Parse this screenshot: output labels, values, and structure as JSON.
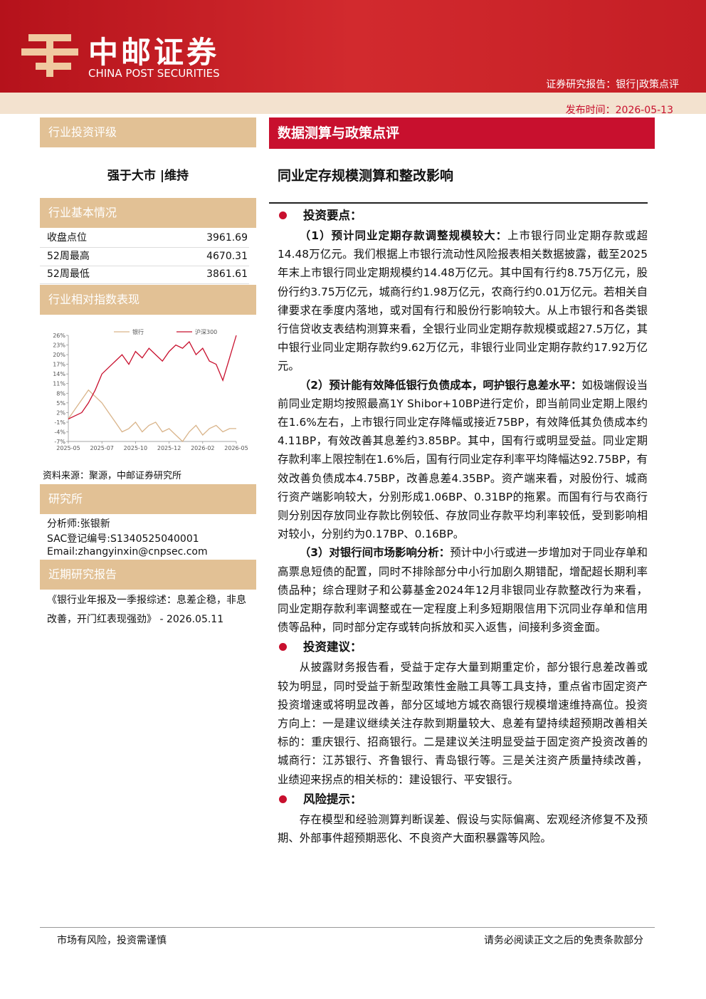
{
  "header": {
    "brand_cn": "中邮证券",
    "brand_en": "CHINA POST SECURITIES",
    "report_type": "证券研究报告：银行|政策点评",
    "publish_date": "发布时间：2026-05-13"
  },
  "sidebar": {
    "rating_title": "行业投资评级",
    "rating": "强于大市 |维持",
    "basics_title": "行业基本情况",
    "basics": [
      [
        "收盘点位",
        "3961.69"
      ],
      [
        "52周最高",
        "4670.31"
      ],
      [
        "52周最低",
        "3861.61"
      ]
    ],
    "performance_title": "行业相对指数表现",
    "source": "资料来源：聚源，中邮证券研究所",
    "institute_title": "研究所",
    "analyst": [
      "分析师:张银新",
      "SAC登记编号:S1340525040001",
      "Email:zhangyinxin@cnpsec.com"
    ],
    "recent_title": "近期研究报告",
    "recent": "《银行业年报及一季报综述：息差企稳，非息改善，开门红表现强劲》 - 2026.05.11"
  },
  "chart_data": {
    "type": "line",
    "x": [
      0,
      1,
      2,
      3,
      4,
      5,
      6,
      7,
      8,
      9,
      10,
      11,
      12,
      13,
      14,
      15,
      16,
      17,
      18,
      19,
      20,
      21,
      22,
      23,
      24,
      25
    ],
    "xlim": [
      0,
      25
    ],
    "xticks": [
      {
        "value": 0,
        "label": "2025-05"
      },
      {
        "value": 5,
        "label": "2025-07"
      },
      {
        "value": 10,
        "label": "2025-10"
      },
      {
        "value": 15,
        "label": "2025-12"
      },
      {
        "value": 20,
        "label": "2026-02"
      },
      {
        "value": 25,
        "label": "2026-05"
      }
    ],
    "ylim": [
      -7,
      26
    ],
    "yticks": [
      {
        "value": 26,
        "label": "26%"
      },
      {
        "value": 23,
        "label": "23%"
      },
      {
        "value": 20,
        "label": "20%"
      },
      {
        "value": 17,
        "label": "17%"
      },
      {
        "value": 14,
        "label": "14%"
      },
      {
        "value": 11,
        "label": "11%"
      },
      {
        "value": 8,
        "label": "8%"
      },
      {
        "value": 5,
        "label": "5%"
      },
      {
        "value": 2,
        "label": "2%"
      },
      {
        "value": -1,
        "label": "-1%"
      },
      {
        "value": -4,
        "label": "-4%"
      },
      {
        "value": -7,
        "label": "-7%"
      }
    ],
    "series": [
      {
        "name": "银行",
        "color": "#d9b48a",
        "values": [
          0,
          3,
          6,
          9,
          7,
          5,
          2,
          -1,
          -4,
          -3,
          -1,
          -4,
          -2,
          -1,
          -4,
          -3,
          -5,
          -7,
          -4,
          -2,
          -5,
          -3,
          -2,
          -4,
          -3,
          -3
        ]
      },
      {
        "name": "沪深300",
        "color": "#c8102e",
        "values": [
          0,
          1,
          2,
          5,
          9,
          14,
          16,
          18,
          20,
          17,
          21,
          19,
          22,
          20,
          18,
          21,
          23,
          22,
          24,
          20,
          22,
          18,
          17,
          12,
          19,
          26
        ]
      }
    ]
  },
  "main": {
    "banner": "数据测算与政策点评",
    "title": "同业定存规模测算和整改影响",
    "sections": [
      {
        "heading": "投资要点：",
        "paragraphs": [
          {
            "lead": "（1）预计同业定期存款调整规模较大：",
            "text": "上市银行同业定期存款或超14.48万亿元。我们根据上市银行流动性风险报表相关数据披露，截至2025年末上市银行同业定期规模约14.48万亿元。其中国有行约8.75万亿元，股份行约3.75万亿元，城商行约1.98万亿元，农商行约0.01万亿元。若相关自律要求在季度内落地，或对国有行和股份行影响较大。从上市银行和各类银行信贷收支表结构测算来看，全银行业同业定期存款规模或超27.5万亿，其中银行业同业定期存款约9.62万亿元，非银行业同业定期存款约17.92万亿元。"
          },
          {
            "lead": "（2）预计能有效降低银行负债成本，呵护银行息差水平：",
            "text": "如极端假设当前同业定期均按照最高1Y Shibor+10BP进行定价，即当前同业定期上限约在1.6%左右，上市银行同业定存降幅或接近75BP，有效降低其负债成本约4.11BP，有效改善其息差约3.85BP。其中，国有行或明显受益。同业定期存款利率上限控制在1.6%后，国有行同业定存利率平均降幅达92.75BP，有效改善负债成本4.75BP，改善息差4.35BP。资产端来看，对股份行、城商行资产端影响较大，分别形成1.06BP、0.31BP的拖累。而国有行与农商行则分别因存放同业存款比例较低、存放同业存款平均利率较低，受到影响相对较小，分别约为0.17BP、0.16BP。"
          },
          {
            "lead": "（3）对银行间市场影响分析：",
            "text": "预计中小行或进一步增加对于同业存单和高票息短债的配置，同时不排除部分中小行加剧久期错配，增配超长期利率债品种；综合理财子和公募基金2024年12月非银同业存款整改行为来看，同业定期存款利率调整或在一定程度上利多短期限信用下沉同业存单和信用债等品种，同时部分定存或转向拆放和买入返售，间接利多资金面。"
          }
        ]
      },
      {
        "heading": "投资建议：",
        "paragraphs": [
          {
            "text": "从披露财务报告看，受益于定存大量到期重定价，部分银行息差改善或较为明显，同时受益于新型政策性金融工具等工具支持，重点省市固定资产投资增速或将明显改善，部分区域地方城农商银行规模增速维持高位。投资方向上：一是建议继续关注存款到期量较大、息差有望持续超预期改善相关标的：重庆银行、招商银行。二是建议关注明显受益于固定资产投资改善的城商行：江苏银行、齐鲁银行、青岛银行等。三是关注资产质量持续改善，业绩迎来拐点的相关标的：建设银行、平安银行。"
          }
        ]
      },
      {
        "heading": "风险提示：",
        "paragraphs": [
          {
            "text": "存在模型和经验测算判断误差、假设与实际偏离、宏观经济修复不及预期、外部事件超预期恶化、不良资产大面积暴露等风险。"
          }
        ]
      }
    ]
  },
  "footer": {
    "left": "市场有风险，投资需谨慎",
    "right": "请务必阅读正文之后的免责条款部分"
  }
}
